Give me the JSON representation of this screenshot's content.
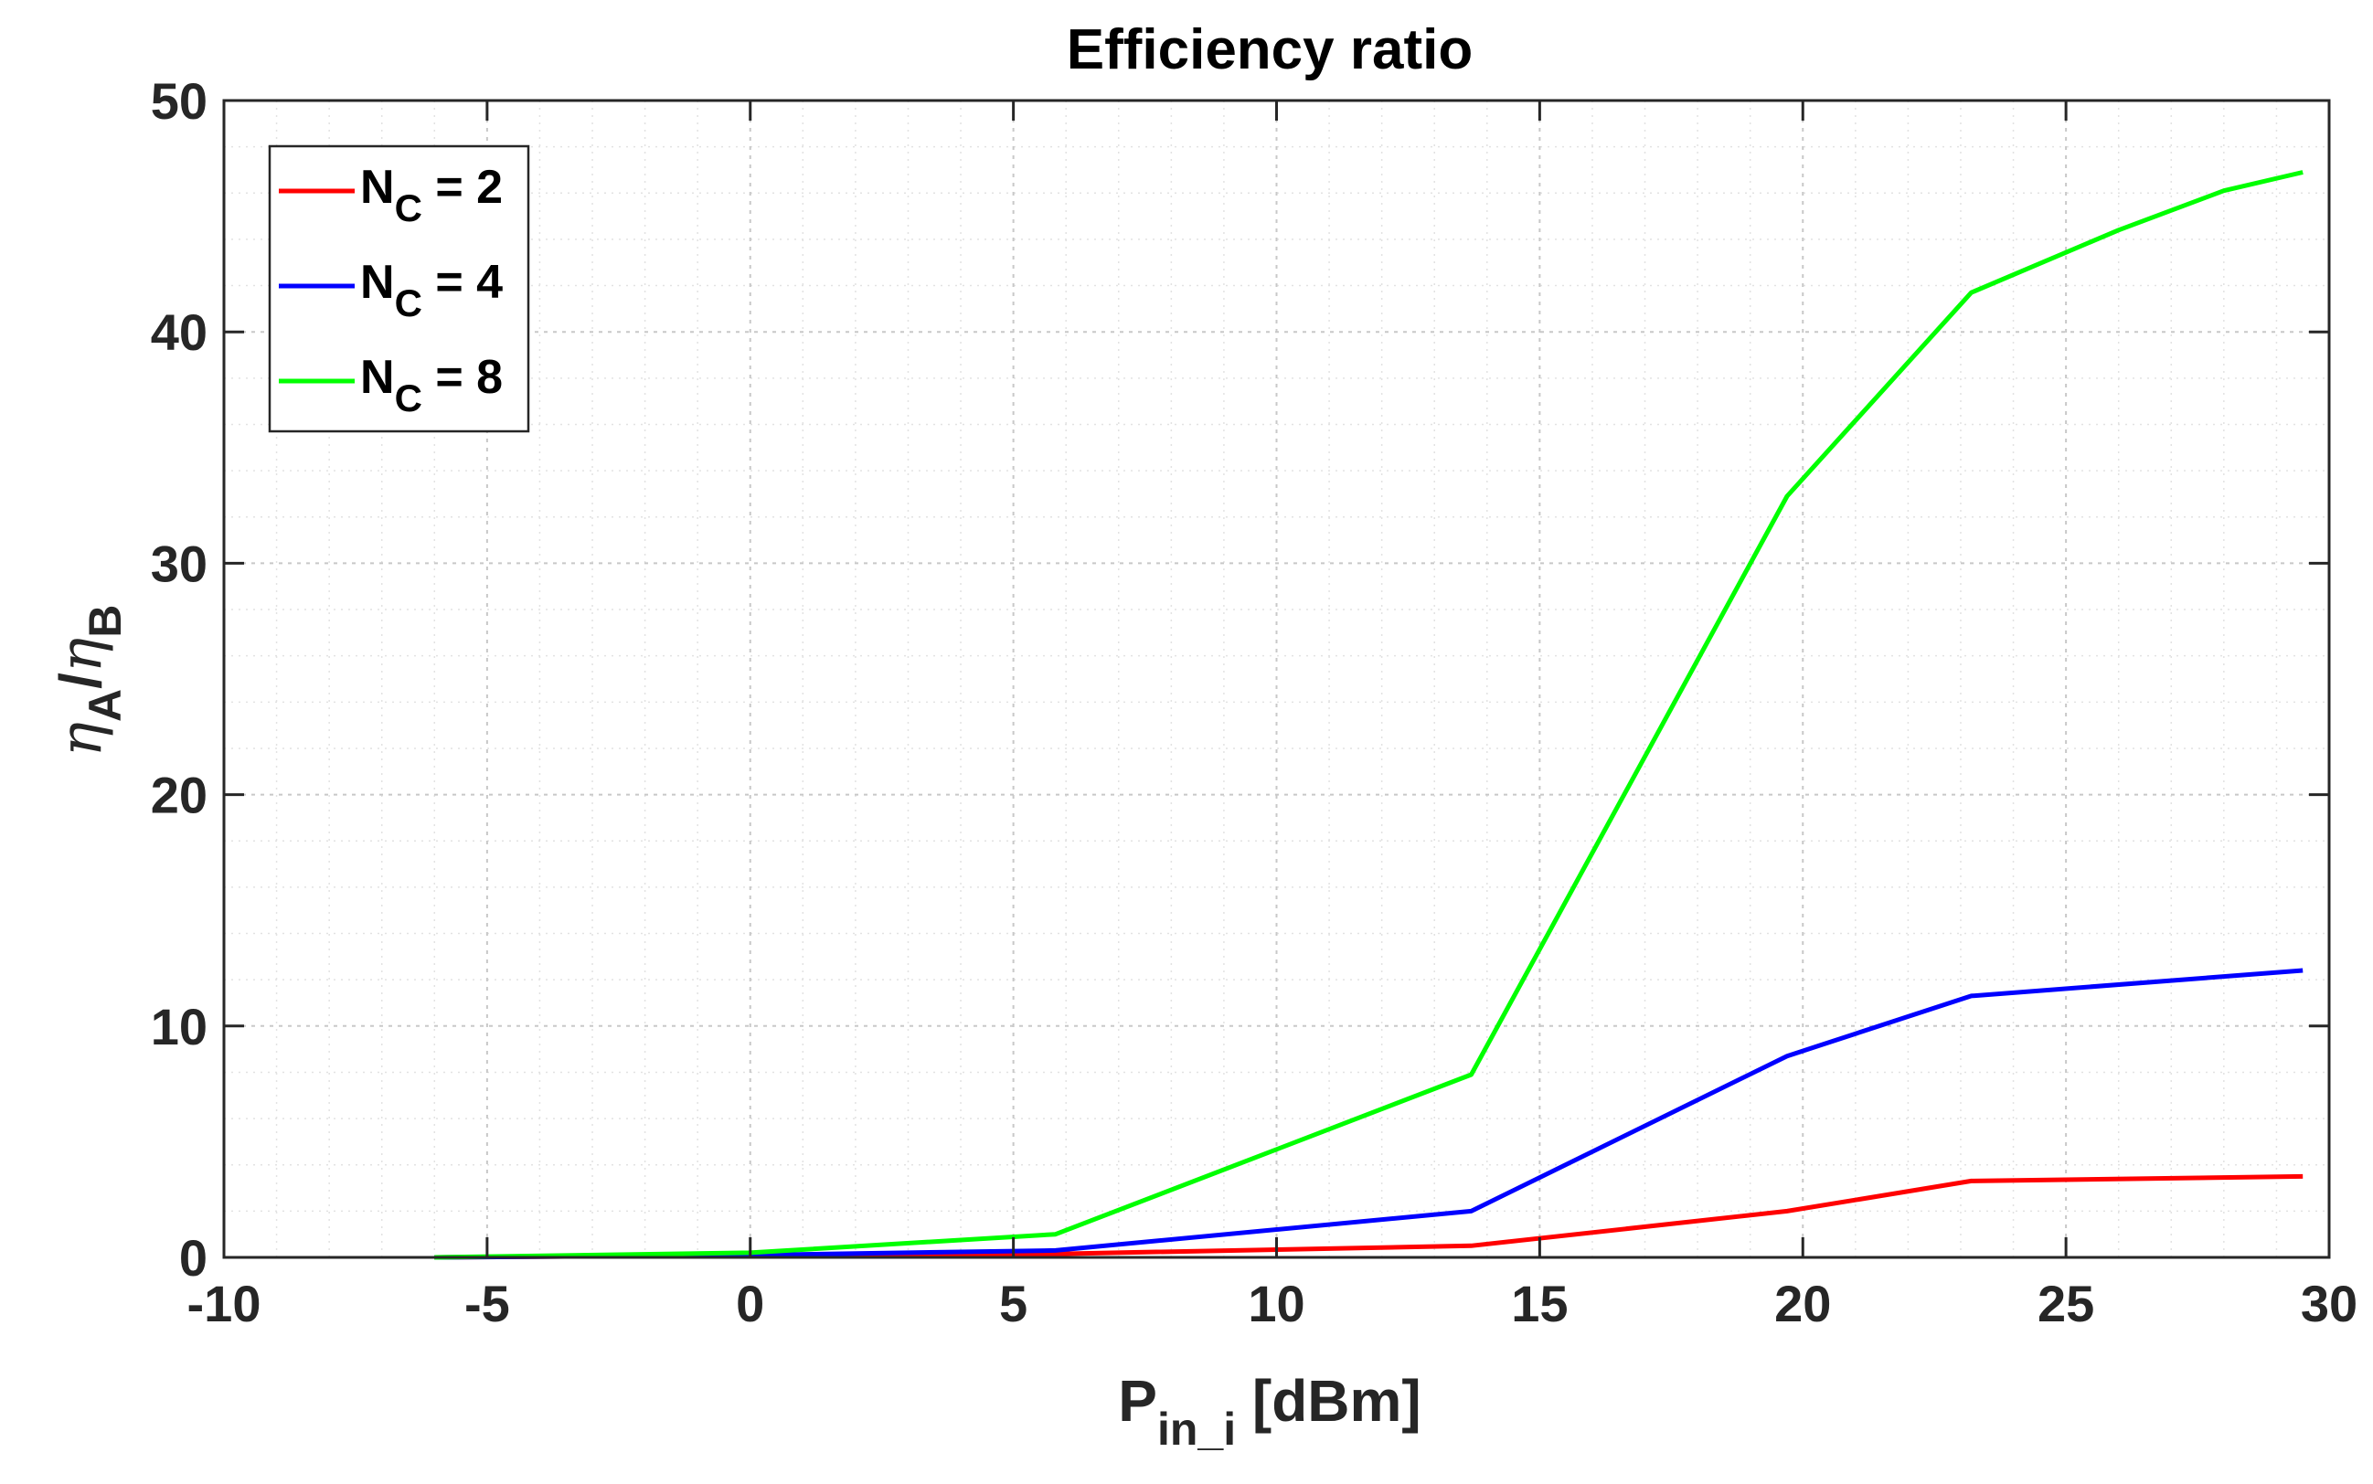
{
  "chart_data": {
    "type": "line",
    "title": "Efficiency ratio",
    "xlabel": {
      "main": "P",
      "sub": "in_i",
      "suffix": " [dBm]"
    },
    "ylabel": {
      "eta1": "η",
      "sub1": "A",
      "slash": "/",
      "eta2": "η",
      "sub2": "B"
    },
    "xlim": [
      -10,
      30
    ],
    "ylim": [
      0,
      50
    ],
    "xticks": [
      -10,
      -5,
      0,
      5,
      10,
      15,
      20,
      25,
      30
    ],
    "yticks": [
      0,
      10,
      20,
      30,
      40,
      50
    ],
    "grid": "major-and-minor",
    "legend_position": "top-left",
    "series": [
      {
        "name": "N_C = 2",
        "label_main": "N",
        "label_sub": "C",
        "label_rest": " = 2",
        "color": "#ff0000",
        "x": [
          -6,
          0,
          5.8,
          13.7,
          19.7,
          23.2,
          29.5
        ],
        "y": [
          0,
          0.1,
          0.15,
          0.5,
          2.0,
          3.3,
          3.5
        ]
      },
      {
        "name": "N_C = 4",
        "label_main": "N",
        "label_sub": "C",
        "label_rest": " = 4",
        "color": "#0000ff",
        "x": [
          -6,
          0,
          5.8,
          13.7,
          19.7,
          23.2,
          29.5
        ],
        "y": [
          0,
          0.1,
          0.3,
          2.0,
          8.7,
          11.3,
          12.4
        ]
      },
      {
        "name": "N_C = 8",
        "label_main": "N",
        "label_sub": "C",
        "label_rest": " = 8",
        "color": "#00ff00",
        "x": [
          -6,
          0,
          5.8,
          13.7,
          19.7,
          23.2,
          26,
          28,
          29.5
        ],
        "y": [
          0,
          0.2,
          1.0,
          7.9,
          32.9,
          41.7,
          44.4,
          46.1,
          46.9
        ]
      }
    ]
  }
}
